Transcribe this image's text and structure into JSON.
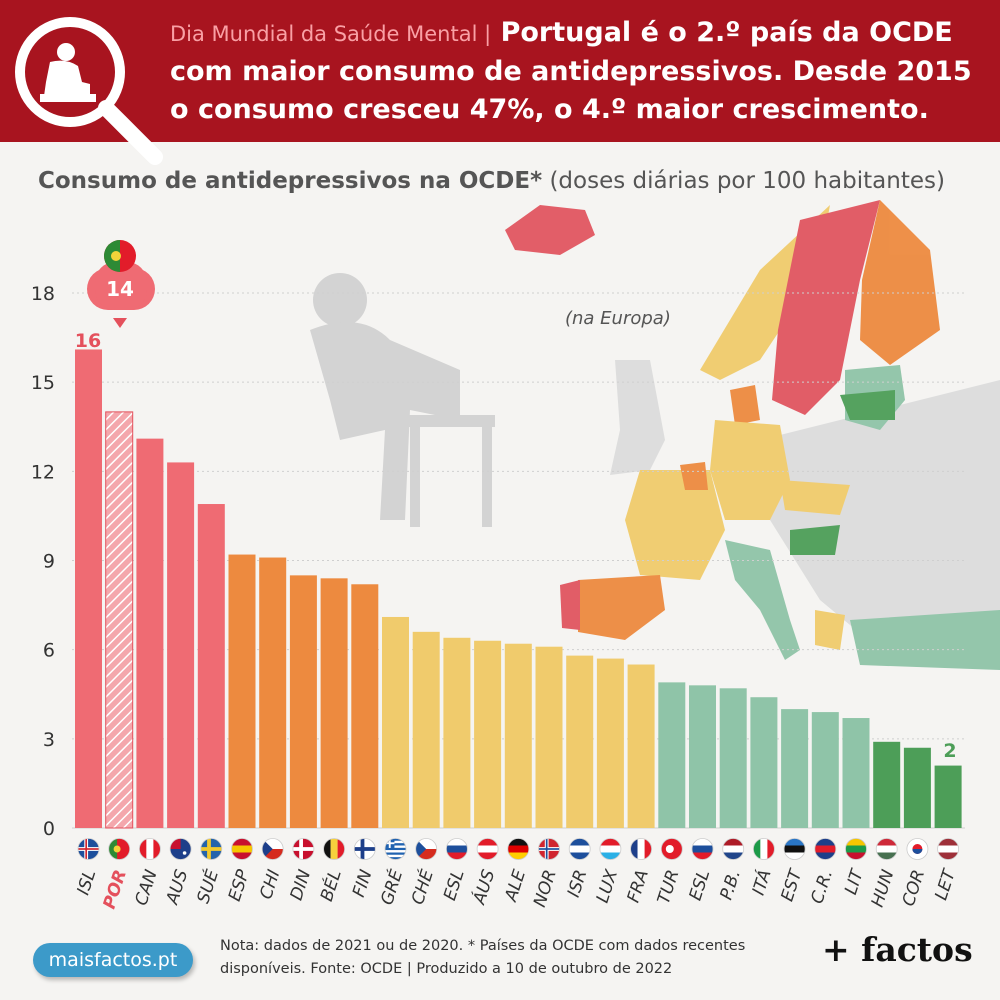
{
  "header": {
    "tag": "Dia Mundial da Saúde Mental |",
    "headline": "Portugal é o 2.º país da OCDE com maior consumo de antidepressivos. Desde 2015 o consumo cresceu 47%, o 4.º maior crescimento."
  },
  "subtitle": {
    "bold": "Consumo de antidepressivos na OCDE*",
    "rest": "(doses diárias por 100 habitantes)"
  },
  "map": {
    "note": "(na Europa)"
  },
  "callouts": {
    "first": "16",
    "highlight": "14",
    "last": "2"
  },
  "footer": {
    "note": "Nota: dados de 2021 ou de 2020. * Países da OCDE com dados recentes disponíveis. Fonte: OCDE | Produzido a 10 de outubro de 2022",
    "site": "maisfactos.pt",
    "brand": "+ factos"
  },
  "colors": {
    "header_bg": "#a8141f",
    "red": "#ef6b73",
    "orange": "#ed8a3f",
    "yellow": "#f0cb6c",
    "lightgreen": "#8fc4a8",
    "darkgreen": "#4d9e58",
    "highlight_label": "#e4505c"
  },
  "chart_data": {
    "type": "bar",
    "ylim": [
      0,
      18
    ],
    "yticks": [
      0,
      3,
      6,
      9,
      12,
      15,
      18
    ],
    "grid": true,
    "highlight": "POR",
    "categories": [
      "ISL",
      "POR",
      "CAN",
      "AUS",
      "SUÉ",
      "ESP",
      "CHI",
      "DIN",
      "BÉL",
      "FIN",
      "GRÉ",
      "CHÉ",
      "ESL",
      "ÁUS",
      "ALE",
      "NOR",
      "ISR",
      "LUX",
      "FRA",
      "TUR",
      "ESL",
      "P.B.",
      "ITÁ",
      "EST",
      "C.R.",
      "LIT",
      "HUN",
      "COR",
      "LET"
    ],
    "values": [
      16.1,
      14.0,
      13.1,
      12.3,
      10.9,
      9.2,
      9.1,
      8.5,
      8.4,
      8.2,
      7.1,
      6.6,
      6.4,
      6.3,
      6.2,
      6.1,
      5.8,
      5.7,
      5.5,
      4.9,
      4.8,
      4.7,
      4.4,
      4.0,
      3.9,
      3.7,
      2.9,
      2.7,
      2.1
    ],
    "color_groups": [
      "red",
      "red",
      "red",
      "red",
      "red",
      "orange",
      "orange",
      "orange",
      "orange",
      "orange",
      "yellow",
      "yellow",
      "yellow",
      "yellow",
      "yellow",
      "yellow",
      "yellow",
      "yellow",
      "yellow",
      "lightgreen",
      "lightgreen",
      "lightgreen",
      "lightgreen",
      "lightgreen",
      "lightgreen",
      "lightgreen",
      "darkgreen",
      "darkgreen",
      "darkgreen"
    ],
    "flags": [
      "flag-iceland",
      "flag-portugal",
      "flag-canada",
      "flag-australia",
      "flag-sweden",
      "flag-spain",
      "flag-chile",
      "flag-denmark",
      "flag-belgium",
      "flag-finland",
      "flag-greece",
      "flag-czechia",
      "flag-slovenia",
      "flag-austria",
      "flag-germany",
      "flag-norway",
      "flag-israel",
      "flag-luxembourg",
      "flag-france",
      "flag-turkey",
      "flag-slovakia",
      "flag-netherlands",
      "flag-italy",
      "flag-estonia",
      "flag-costa-rica",
      "flag-lithuania",
      "flag-hungary",
      "flag-korea",
      "flag-latvia"
    ]
  }
}
